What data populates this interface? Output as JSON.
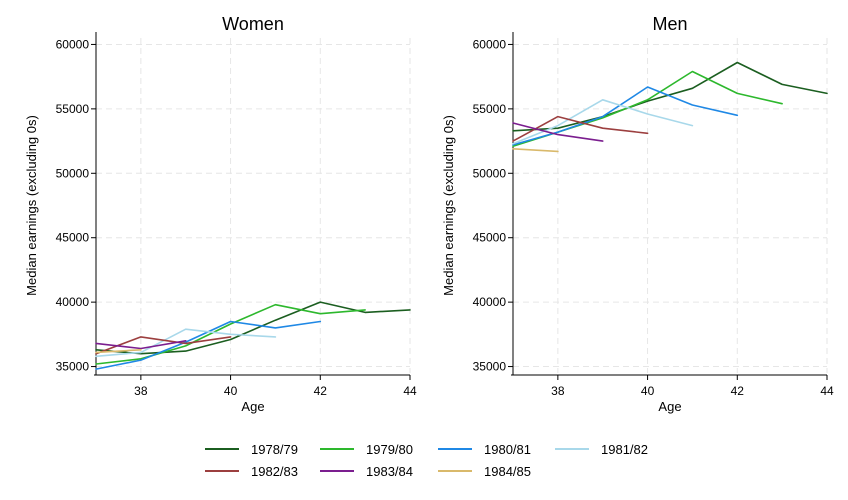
{
  "chart_data": [
    {
      "type": "line",
      "title": "Women",
      "xlabel": "Age",
      "ylabel": "Median earnings (excluding 0s)",
      "xlim": [
        37,
        44
      ],
      "ylim": [
        34500,
        60500
      ],
      "xticks": [
        38,
        40,
        42,
        44
      ],
      "yticks": [
        35000,
        40000,
        45000,
        50000,
        55000,
        60000
      ],
      "grid": true,
      "series": [
        {
          "name": "1978/79",
          "color": "#1b5e20",
          "x": [
            37,
            38,
            39,
            40,
            41,
            42,
            43,
            44
          ],
          "y": [
            36300,
            36000,
            36200,
            37100,
            38600,
            40000,
            39200,
            39400
          ]
        },
        {
          "name": "1979/80",
          "color": "#2db82d",
          "x": [
            37,
            38,
            39,
            40,
            41,
            42,
            43
          ],
          "y": [
            35200,
            35600,
            36600,
            38300,
            39800,
            39100,
            39400
          ]
        },
        {
          "name": "1980/81",
          "color": "#1f88e5",
          "x": [
            37,
            38,
            39,
            40,
            41,
            42
          ],
          "y": [
            34800,
            35500,
            36900,
            38500,
            38000,
            38500
          ]
        },
        {
          "name": "1981/82",
          "color": "#a8d8ea",
          "x": [
            37,
            38,
            39,
            40,
            41
          ],
          "y": [
            35800,
            36100,
            37900,
            37500,
            37300
          ]
        },
        {
          "name": "1982/83",
          "color": "#9c3f3f",
          "x": [
            37,
            38,
            39,
            40
          ],
          "y": [
            36000,
            37300,
            36800,
            37300
          ]
        },
        {
          "name": "1983/84",
          "color": "#7b1e8f",
          "x": [
            37,
            38,
            39
          ],
          "y": [
            36800,
            36400,
            37000
          ]
        },
        {
          "name": "1984/85",
          "color": "#d9b96b",
          "x": [
            37,
            38
          ],
          "y": [
            36100,
            36300
          ]
        }
      ]
    },
    {
      "type": "line",
      "title": "Men",
      "xlabel": "Age",
      "ylabel": "Median earnings (excluding 0s)",
      "xlim": [
        37,
        44
      ],
      "ylim": [
        34500,
        60500
      ],
      "xticks": [
        38,
        40,
        42,
        44
      ],
      "yticks": [
        35000,
        40000,
        45000,
        50000,
        55000,
        60000
      ],
      "grid": true,
      "series": [
        {
          "name": "1978/79",
          "color": "#1b5e20",
          "x": [
            37,
            38,
            39,
            40,
            41,
            42,
            43,
            44
          ],
          "y": [
            53300,
            53500,
            54400,
            55600,
            56600,
            58600,
            56900,
            56200
          ]
        },
        {
          "name": "1979/80",
          "color": "#2db82d",
          "x": [
            37,
            38,
            39,
            40,
            41,
            42,
            43
          ],
          "y": [
            52100,
            53200,
            54300,
            55700,
            57900,
            56200,
            55400
          ]
        },
        {
          "name": "1980/81",
          "color": "#1f88e5",
          "x": [
            37,
            38,
            39,
            40,
            41,
            42
          ],
          "y": [
            52200,
            53200,
            54400,
            56700,
            55300,
            54500
          ]
        },
        {
          "name": "1981/82",
          "color": "#a8d8ea",
          "x": [
            37,
            38,
            39,
            40,
            41
          ],
          "y": [
            52300,
            53700,
            55700,
            54600,
            53700
          ]
        },
        {
          "name": "1982/83",
          "color": "#9c3f3f",
          "x": [
            37,
            38,
            39,
            40
          ],
          "y": [
            52500,
            54400,
            53500,
            53100
          ]
        },
        {
          "name": "1983/84",
          "color": "#7b1e8f",
          "x": [
            37,
            38,
            39
          ],
          "y": [
            53900,
            53000,
            52500
          ]
        },
        {
          "name": "1984/85",
          "color": "#d9b96b",
          "x": [
            37,
            38
          ],
          "y": [
            51900,
            51700
          ]
        }
      ]
    }
  ],
  "legend": {
    "placement": "bottom",
    "items": [
      {
        "label": "1978/79",
        "color": "#1b5e20"
      },
      {
        "label": "1979/80",
        "color": "#2db82d"
      },
      {
        "label": "1980/81",
        "color": "#1f88e5"
      },
      {
        "label": "1981/82",
        "color": "#a8d8ea"
      },
      {
        "label": "1982/83",
        "color": "#9c3f3f"
      },
      {
        "label": "1983/84",
        "color": "#7b1e8f"
      },
      {
        "label": "1984/85",
        "color": "#d9b96b"
      }
    ]
  }
}
